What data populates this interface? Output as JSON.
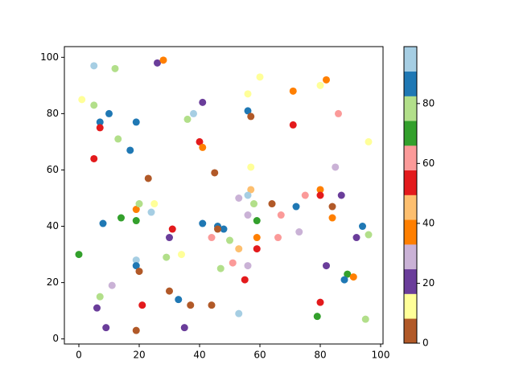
{
  "chart_data": {
    "type": "scatter",
    "x": [
      5,
      12,
      26,
      28,
      1,
      5,
      7,
      10,
      7,
      19,
      13,
      17,
      5,
      23,
      36,
      38,
      41,
      40,
      41,
      45,
      56,
      56,
      57,
      60,
      71,
      71,
      80,
      82,
      86,
      96,
      85,
      57,
      57,
      53,
      56,
      64,
      58,
      67,
      56,
      59,
      75,
      72,
      80,
      80,
      84,
      87,
      84,
      94,
      96,
      92,
      19,
      20,
      25,
      24,
      14,
      19,
      8,
      41,
      46,
      48,
      46,
      31,
      30,
      44,
      50,
      53,
      59,
      59,
      66,
      73,
      0,
      19,
      19,
      20,
      29,
      34,
      47,
      51,
      56,
      55,
      82,
      89,
      88,
      91,
      11,
      7,
      6,
      21,
      30,
      33,
      37,
      44,
      53,
      80,
      79,
      95,
      9,
      19,
      35
    ],
    "y": [
      97,
      96,
      98,
      99,
      85,
      83,
      77,
      80,
      75,
      77,
      71,
      67,
      64,
      57,
      78,
      80,
      84,
      70,
      68,
      59,
      87,
      81,
      79,
      93,
      88,
      76,
      90,
      92,
      80,
      70,
      61,
      61,
      53,
      50,
      51,
      48,
      48,
      44,
      44,
      42,
      51,
      47,
      53,
      51,
      47,
      51,
      43,
      40,
      37,
      36,
      46,
      48,
      48,
      45,
      43,
      42,
      41,
      41,
      40,
      39,
      39,
      39,
      36,
      36,
      35,
      32,
      36,
      32,
      36,
      38,
      30,
      28,
      26,
      24,
      29,
      30,
      25,
      27,
      26,
      21,
      26,
      23,
      21,
      22,
      19,
      15,
      11,
      12,
      17,
      14,
      12,
      12,
      9,
      13,
      8,
      7,
      4,
      3,
      4
    ],
    "c": [
      95,
      78,
      20,
      37,
      12,
      78,
      87,
      87,
      53,
      87,
      78,
      87,
      53,
      4,
      78,
      95,
      20,
      53,
      37,
      4,
      12,
      87,
      4,
      12,
      37,
      53,
      12,
      37,
      62,
      12,
      29,
      12,
      45,
      29,
      95,
      4,
      78,
      62,
      29,
      70,
      62,
      87,
      37,
      53,
      4,
      20,
      37,
      87,
      78,
      20,
      37,
      78,
      12,
      95,
      70,
      70,
      87,
      87,
      87,
      87,
      4,
      53,
      20,
      62,
      78,
      45,
      37,
      53,
      62,
      29,
      70,
      95,
      87,
      4,
      78,
      12,
      78,
      62,
      29,
      53,
      20,
      70,
      87,
      37,
      29,
      78,
      20,
      53,
      4,
      87,
      4,
      4,
      95,
      53,
      70,
      78,
      20,
      4,
      20
    ],
    "xlim": [
      -4.8,
      100.8
    ],
    "ylim": [
      -1.8,
      103.8
    ],
    "xticks": [
      0,
      20,
      40,
      60,
      80,
      100
    ],
    "yticks": [
      0,
      20,
      40,
      60,
      80,
      100
    ],
    "clim": [
      0,
      99
    ],
    "cticks": [
      0,
      20,
      40,
      60,
      80
    ],
    "colormap": [
      "#b15928",
      "#ffff99",
      "#6a3d9a",
      "#cab2d6",
      "#ff7f00",
      "#fdbf6f",
      "#e31a1c",
      "#fb9a99",
      "#33a02c",
      "#b2df8a",
      "#1f78b4",
      "#a6cee3"
    ]
  }
}
